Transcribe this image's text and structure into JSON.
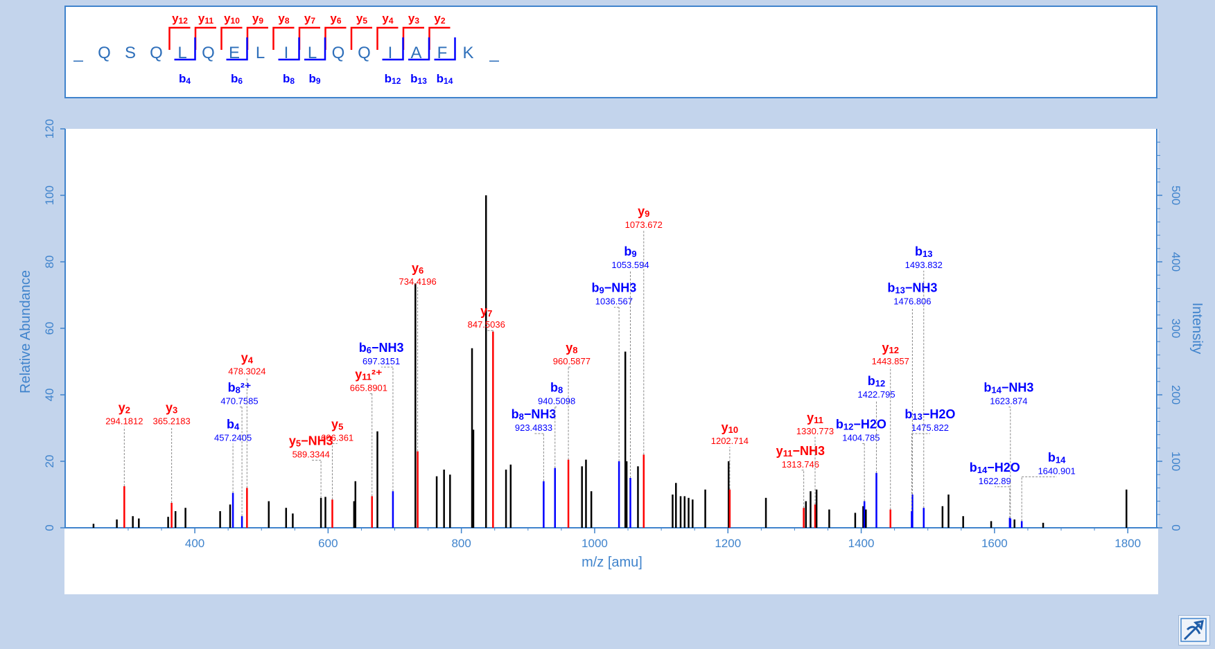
{
  "sequence": {
    "residues": [
      "_",
      "Q",
      "S",
      "Q",
      "L",
      "Q",
      "E",
      "L",
      "I",
      "L",
      "Q",
      "Q",
      "I",
      "A",
      "F",
      "K",
      "_"
    ],
    "y_ions": [
      {
        "label": "y12",
        "after": 4
      },
      {
        "label": "y11",
        "after": 5
      },
      {
        "label": "y10",
        "after": 6
      },
      {
        "label": "y9",
        "after": 7
      },
      {
        "label": "y8",
        "after": 8
      },
      {
        "label": "y7",
        "after": 9
      },
      {
        "label": "y6",
        "after": 10
      },
      {
        "label": "y5",
        "after": 11
      },
      {
        "label": "y4",
        "after": 12
      },
      {
        "label": "y3",
        "after": 13
      },
      {
        "label": "y2",
        "after": 14
      }
    ],
    "b_ions": [
      {
        "label": "b4",
        "after": 4
      },
      {
        "label": "b6",
        "after": 6
      },
      {
        "label": "b8",
        "after": 8
      },
      {
        "label": "b9",
        "after": 9
      },
      {
        "label": "b12",
        "after": 12
      },
      {
        "label": "b13",
        "after": 13
      },
      {
        "label": "b14",
        "after": 14
      }
    ]
  },
  "colors": {
    "y_ion": "#ff0000",
    "b_ion": "#0000ff",
    "unassigned": "#000000",
    "axis": "#3f83cc",
    "background": "#c3d4ec"
  },
  "chart_data": {
    "type": "bar",
    "xlabel": "m/z [amu]",
    "ylabel": "Relative Abundance",
    "y2label": "Intensity",
    "xlim": [
      220,
      1830
    ],
    "ylim": [
      0,
      120
    ],
    "y2lim": [
      0,
      600
    ],
    "xticks": [
      400,
      600,
      800,
      1000,
      1200,
      1400,
      1600,
      1800
    ],
    "yticks": [
      0,
      20,
      40,
      60,
      80,
      100,
      120
    ],
    "y2ticks": [
      0,
      100,
      200,
      300,
      400,
      500
    ],
    "peaks": [
      {
        "mz": 248,
        "rel": 1.2,
        "color": "black"
      },
      {
        "mz": 283,
        "rel": 2.5,
        "color": "black"
      },
      {
        "mz": 294.18,
        "rel": 12.5,
        "color": "red",
        "ion": "y2",
        "mz_label": "294.1812"
      },
      {
        "mz": 307,
        "rel": 3.5,
        "color": "black"
      },
      {
        "mz": 316,
        "rel": 2.8,
        "color": "black"
      },
      {
        "mz": 360,
        "rel": 3.3,
        "color": "black"
      },
      {
        "mz": 365.22,
        "rel": 7.5,
        "color": "red",
        "ion": "y3",
        "mz_label": "365.2183"
      },
      {
        "mz": 371,
        "rel": 5,
        "color": "black"
      },
      {
        "mz": 386,
        "rel": 6,
        "color": "black"
      },
      {
        "mz": 438,
        "rel": 5,
        "color": "black"
      },
      {
        "mz": 453,
        "rel": 7,
        "color": "black"
      },
      {
        "mz": 457.24,
        "rel": 10.5,
        "color": "blue",
        "ion": "b4",
        "mz_label": "457.2405"
      },
      {
        "mz": 470.76,
        "rel": 3.5,
        "color": "blue",
        "ion": "b8²⁺",
        "mz_label": "470.7585"
      },
      {
        "mz": 478.3,
        "rel": 12,
        "color": "red",
        "ion": "y4",
        "mz_label": "478.3024"
      },
      {
        "mz": 511,
        "rel": 8,
        "color": "black"
      },
      {
        "mz": 537,
        "rel": 6,
        "color": "black"
      },
      {
        "mz": 547,
        "rel": 4.3,
        "color": "black"
      },
      {
        "mz": 589.33,
        "rel": 9,
        "color": "black",
        "ion": "y5−NH3",
        "ion_color": "red",
        "mz_label": "589.3344"
      },
      {
        "mz": 596,
        "rel": 9.3,
        "color": "black"
      },
      {
        "mz": 606.36,
        "rel": 8.5,
        "color": "red",
        "ion": "y5",
        "mz_label": "606.361"
      },
      {
        "mz": 639,
        "rel": 8,
        "color": "black"
      },
      {
        "mz": 641,
        "rel": 14,
        "color": "black"
      },
      {
        "mz": 665.89,
        "rel": 9.5,
        "color": "red",
        "ion": "y11²⁺",
        "mz_label": "665.8901"
      },
      {
        "mz": 674,
        "rel": 29,
        "color": "black"
      },
      {
        "mz": 697.32,
        "rel": 11,
        "color": "blue",
        "ion": "b6−NH3",
        "mz_label": "697.3151"
      },
      {
        "mz": 731,
        "rel": 73.5,
        "color": "black"
      },
      {
        "mz": 734.42,
        "rel": 23,
        "color": "red",
        "ion": "y6",
        "mz_label": "734.4196"
      },
      {
        "mz": 763,
        "rel": 15.5,
        "color": "black"
      },
      {
        "mz": 774,
        "rel": 17.5,
        "color": "black"
      },
      {
        "mz": 783,
        "rel": 16,
        "color": "black"
      },
      {
        "mz": 816,
        "rel": 54,
        "color": "black"
      },
      {
        "mz": 818,
        "rel": 29.5,
        "color": "black"
      },
      {
        "mz": 837,
        "rel": 100,
        "color": "black"
      },
      {
        "mz": 847.5,
        "rel": 59,
        "color": "red",
        "ion": "y7",
        "mz_label": "847.5036"
      },
      {
        "mz": 867,
        "rel": 17.5,
        "color": "black"
      },
      {
        "mz": 874,
        "rel": 19,
        "color": "black"
      },
      {
        "mz": 923.48,
        "rel": 14,
        "color": "blue",
        "ion": "b8−NH3",
        "mz_label": "923.4833"
      },
      {
        "mz": 940.51,
        "rel": 18,
        "color": "blue",
        "ion": "b8",
        "mz_label": "940.5098"
      },
      {
        "mz": 960.59,
        "rel": 20.5,
        "color": "red",
        "ion": "y8",
        "mz_label": "960.5877"
      },
      {
        "mz": 981,
        "rel": 18.5,
        "color": "black"
      },
      {
        "mz": 987,
        "rel": 20.5,
        "color": "black"
      },
      {
        "mz": 995,
        "rel": 11,
        "color": "black"
      },
      {
        "mz": 1036.57,
        "rel": 20,
        "color": "blue",
        "ion": "b9−NH3",
        "mz_label": "1036.567"
      },
      {
        "mz": 1046,
        "rel": 53,
        "color": "black"
      },
      {
        "mz": 1048,
        "rel": 20,
        "color": "black"
      },
      {
        "mz": 1053.59,
        "rel": 15,
        "color": "blue",
        "ion": "b9",
        "mz_label": "1053.594"
      },
      {
        "mz": 1065,
        "rel": 18.5,
        "color": "black"
      },
      {
        "mz": 1073.67,
        "rel": 22,
        "color": "red",
        "ion": "y9",
        "mz_label": "1073.672"
      },
      {
        "mz": 1117,
        "rel": 10,
        "color": "black"
      },
      {
        "mz": 1122,
        "rel": 13.5,
        "color": "black"
      },
      {
        "mz": 1129,
        "rel": 9.5,
        "color": "black"
      },
      {
        "mz": 1135,
        "rel": 9.5,
        "color": "black"
      },
      {
        "mz": 1141,
        "rel": 9,
        "color": "black"
      },
      {
        "mz": 1147,
        "rel": 8.5,
        "color": "black"
      },
      {
        "mz": 1166,
        "rel": 11.5,
        "color": "black"
      },
      {
        "mz": 1201,
        "rel": 20,
        "color": "black"
      },
      {
        "mz": 1202.71,
        "rel": 11.5,
        "color": "red",
        "ion": "y10",
        "mz_label": "1202.714"
      },
      {
        "mz": 1257,
        "rel": 9,
        "color": "black"
      },
      {
        "mz": 1313.75,
        "rel": 6,
        "color": "red",
        "ion": "y11−NH3",
        "mz_label": "1313.746"
      },
      {
        "mz": 1317,
        "rel": 8,
        "color": "black"
      },
      {
        "mz": 1324,
        "rel": 11,
        "color": "black"
      },
      {
        "mz": 1330.77,
        "rel": 7,
        "color": "red",
        "ion": "y11",
        "mz_label": "1330.773"
      },
      {
        "mz": 1333,
        "rel": 11.5,
        "color": "black"
      },
      {
        "mz": 1352,
        "rel": 5.5,
        "color": "black"
      },
      {
        "mz": 1391,
        "rel": 4.5,
        "color": "black"
      },
      {
        "mz": 1403,
        "rel": 6.5,
        "color": "black"
      },
      {
        "mz": 1404.79,
        "rel": 8,
        "color": "blue",
        "ion": "b12−H2O",
        "mz_label": "1404.785"
      },
      {
        "mz": 1407,
        "rel": 5.5,
        "color": "black"
      },
      {
        "mz": 1422.8,
        "rel": 16.5,
        "color": "blue",
        "ion": "b12",
        "mz_label": "1422.795"
      },
      {
        "mz": 1443.86,
        "rel": 5.5,
        "color": "red",
        "ion": "y12",
        "mz_label": "1443.857"
      },
      {
        "mz": 1475.82,
        "rel": 5,
        "color": "blue",
        "ion": "b13−H2O",
        "mz_label": "1475.822"
      },
      {
        "mz": 1476.81,
        "rel": 10,
        "color": "blue",
        "ion": "b13−NH3",
        "mz_label": "1476.806"
      },
      {
        "mz": 1493.83,
        "rel": 6,
        "color": "blue",
        "ion": "b13",
        "mz_label": "1493.832"
      },
      {
        "mz": 1522,
        "rel": 6.5,
        "color": "black"
      },
      {
        "mz": 1531,
        "rel": 10,
        "color": "black"
      },
      {
        "mz": 1553,
        "rel": 3.5,
        "color": "black"
      },
      {
        "mz": 1595,
        "rel": 2,
        "color": "black"
      },
      {
        "mz": 1622.89,
        "rel": 3,
        "color": "blue",
        "ion": "b14−H2O",
        "mz_label": "1622.89"
      },
      {
        "mz": 1623.87,
        "rel": 2.8,
        "color": "blue",
        "ion": "b14−NH3",
        "mz_label": "1623.874"
      },
      {
        "mz": 1630,
        "rel": 2.5,
        "color": "black"
      },
      {
        "mz": 1640.9,
        "rel": 2,
        "color": "blue",
        "ion": "b14",
        "mz_label": "1640.901"
      },
      {
        "mz": 1673,
        "rel": 1.5,
        "color": "black"
      },
      {
        "mz": 1798,
        "rel": 11.5,
        "color": "black"
      }
    ]
  }
}
